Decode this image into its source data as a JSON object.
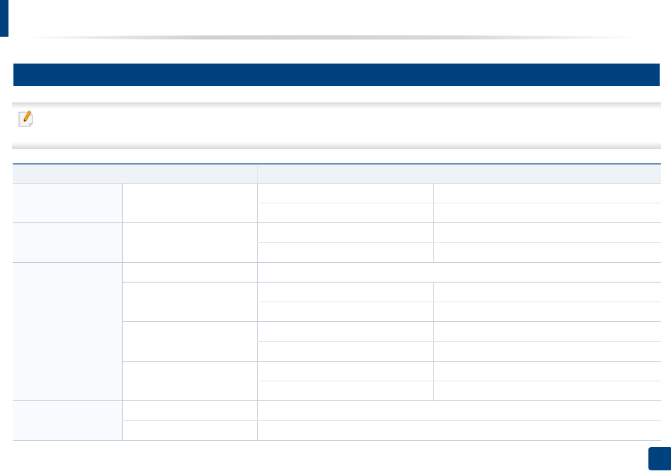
{
  "colors": {
    "brand": "#00427f",
    "table_header_bg": "#eff3f7",
    "table_header_rule": "#6590bb",
    "first_column_bg": "#f8fafd"
  },
  "icons": {
    "note": "note-pencil-icon"
  }
}
